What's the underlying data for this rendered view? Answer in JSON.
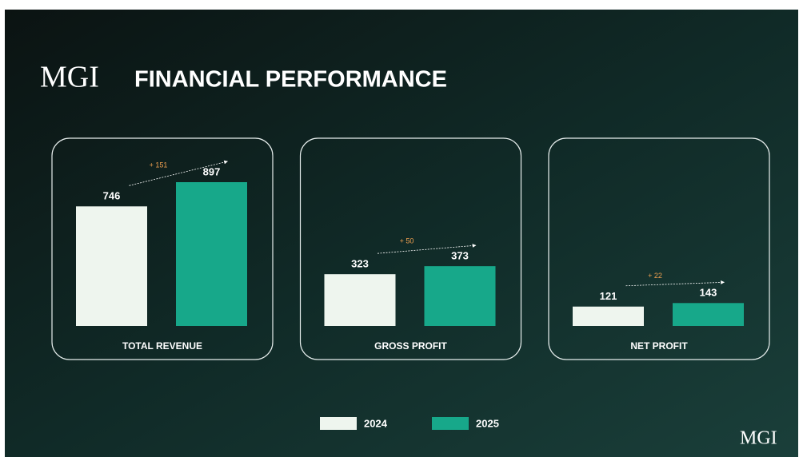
{
  "logo": "MGI",
  "title": "FINANCIAL PERFORMANCE",
  "chart_data": [
    {
      "type": "bar",
      "title": "TOTAL REVENUE",
      "annotation": "+ 151",
      "series": [
        {
          "name": "2024",
          "color": "#eef5ee",
          "values": [
            746
          ]
        },
        {
          "name": "2025",
          "color": "#17a88a",
          "values": [
            897
          ]
        }
      ]
    },
    {
      "type": "bar",
      "title": "GROSS PROFIT",
      "annotation": "+ 50",
      "series": [
        {
          "name": "2024",
          "color": "#eef5ee",
          "values": [
            323
          ]
        },
        {
          "name": "2025",
          "color": "#17a88a",
          "values": [
            373
          ]
        }
      ]
    },
    {
      "type": "bar",
      "title": "NET PROFIT",
      "annotation": "+ 22",
      "series": [
        {
          "name": "2024",
          "color": "#eef5ee",
          "values": [
            121
          ]
        },
        {
          "name": "2025",
          "color": "#17a88a",
          "values": [
            143
          ]
        }
      ]
    }
  ]
}
